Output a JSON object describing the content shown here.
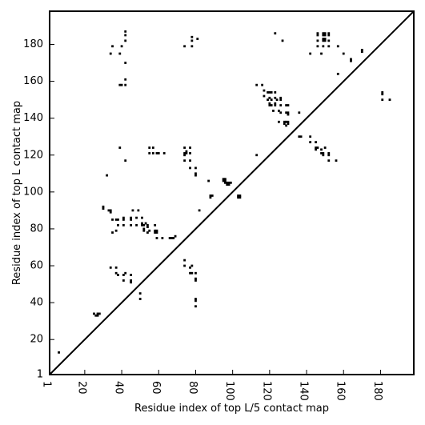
{
  "chart_data": {
    "type": "scatter",
    "xlabel": "Residue index of top L/5 contact map",
    "ylabel": "Residue index of top L contact map",
    "xlim": [
      1,
      198
    ],
    "ylim": [
      1,
      198
    ],
    "xticks": [
      1,
      20,
      40,
      60,
      80,
      100,
      120,
      140,
      160,
      180
    ],
    "yticks": [
      1,
      20,
      40,
      60,
      80,
      100,
      120,
      140,
      160,
      180
    ],
    "grid": false,
    "diagonal": true,
    "series": [
      {
        "color": "#000000",
        "marker": "square",
        "points": [
          [
            6,
            13
          ],
          [
            25,
            34
          ],
          [
            26,
            33
          ],
          [
            27,
            33
          ],
          [
            27,
            34
          ],
          [
            28,
            34
          ],
          [
            30,
            91
          ],
          [
            30,
            92
          ],
          [
            32,
            109
          ],
          [
            34,
            89
          ],
          [
            34,
            90
          ],
          [
            33,
            90
          ],
          [
            34,
            59
          ],
          [
            35,
            78
          ],
          [
            35,
            85
          ],
          [
            34,
            175
          ],
          [
            35,
            179
          ],
          [
            37,
            79
          ],
          [
            37,
            85
          ],
          [
            38,
            82
          ],
          [
            38,
            85
          ],
          [
            37,
            56
          ],
          [
            37,
            59
          ],
          [
            38,
            55
          ],
          [
            39,
            124
          ],
          [
            39,
            158
          ],
          [
            39,
            175
          ],
          [
            40,
            158
          ],
          [
            40,
            179
          ],
          [
            41,
            52
          ],
          [
            41,
            55
          ],
          [
            41,
            82
          ],
          [
            41,
            85
          ],
          [
            41,
            86
          ],
          [
            42,
            56
          ],
          [
            42,
            117
          ],
          [
            42,
            158
          ],
          [
            42,
            161
          ],
          [
            42,
            170
          ],
          [
            42,
            182
          ],
          [
            42,
            185
          ],
          [
            42,
            187
          ],
          [
            45,
            51
          ],
          [
            45,
            52
          ],
          [
            45,
            55
          ],
          [
            45,
            82
          ],
          [
            45,
            85
          ],
          [
            45,
            86
          ],
          [
            46,
            90
          ],
          [
            48,
            82
          ],
          [
            48,
            86
          ],
          [
            49,
            90
          ],
          [
            50,
            42
          ],
          [
            50,
            45
          ],
          [
            51,
            82
          ],
          [
            51,
            83
          ],
          [
            51,
            86
          ],
          [
            52,
            82
          ],
          [
            52,
            79
          ],
          [
            52,
            80
          ],
          [
            53,
            83
          ],
          [
            54,
            78
          ],
          [
            54,
            81
          ],
          [
            54,
            82
          ],
          [
            55,
            79
          ],
          [
            55,
            121
          ],
          [
            55,
            124
          ],
          [
            57,
            121
          ],
          [
            57,
            124
          ],
          [
            58,
            78
          ],
          [
            58,
            79
          ],
          [
            59,
            78
          ],
          [
            59,
            79
          ],
          [
            58,
            82
          ],
          [
            59,
            75
          ],
          [
            59,
            121
          ],
          [
            60,
            121
          ],
          [
            62,
            75
          ],
          [
            63,
            121
          ],
          [
            66,
            75
          ],
          [
            67,
            75
          ],
          [
            68,
            75
          ],
          [
            69,
            76
          ],
          [
            74,
            179
          ],
          [
            74,
            117
          ],
          [
            74,
            120
          ],
          [
            74,
            121
          ],
          [
            75,
            121
          ],
          [
            75,
            122
          ],
          [
            74,
            124
          ],
          [
            74,
            60
          ],
          [
            74,
            63
          ],
          [
            77,
            56
          ],
          [
            77,
            59
          ],
          [
            77,
            113
          ],
          [
            77,
            117
          ],
          [
            77,
            121
          ],
          [
            77,
            124
          ],
          [
            78,
            60
          ],
          [
            78,
            56
          ],
          [
            78,
            179
          ],
          [
            78,
            182
          ],
          [
            78,
            184
          ],
          [
            80,
            56
          ],
          [
            80,
            52
          ],
          [
            80,
            53
          ],
          [
            80,
            41
          ],
          [
            80,
            42
          ],
          [
            80,
            38
          ],
          [
            80,
            109
          ],
          [
            80,
            110
          ],
          [
            80,
            113
          ],
          [
            81,
            183
          ],
          [
            82,
            90
          ],
          [
            87,
            106
          ],
          [
            88,
            97
          ],
          [
            88,
            98
          ],
          [
            89,
            98
          ],
          [
            95,
            106
          ],
          [
            95,
            107
          ],
          [
            96,
            106
          ],
          [
            96,
            107
          ],
          [
            96,
            105
          ],
          [
            97,
            104
          ],
          [
            97,
            105
          ],
          [
            98,
            105
          ],
          [
            98,
            104
          ],
          [
            99,
            105
          ],
          [
            103,
            97
          ],
          [
            103,
            98
          ],
          [
            104,
            97
          ],
          [
            104,
            98
          ],
          [
            113,
            120
          ],
          [
            113,
            158
          ],
          [
            116,
            158
          ],
          [
            117,
            152
          ],
          [
            117,
            155
          ],
          [
            119,
            154
          ],
          [
            119,
            150
          ],
          [
            120,
            151
          ],
          [
            120,
            147
          ],
          [
            120,
            148
          ],
          [
            120,
            154
          ],
          [
            121,
            154
          ],
          [
            121,
            150
          ],
          [
            121,
            147
          ],
          [
            122,
            144
          ],
          [
            123,
            147
          ],
          [
            123,
            148
          ],
          [
            123,
            151
          ],
          [
            123,
            154
          ],
          [
            123,
            186
          ],
          [
            124,
            150
          ],
          [
            125,
            138
          ],
          [
            125,
            144
          ],
          [
            126,
            147
          ],
          [
            126,
            150
          ],
          [
            126,
            151
          ],
          [
            126,
            143
          ],
          [
            127,
            182
          ],
          [
            128,
            137
          ],
          [
            128,
            138
          ],
          [
            129,
            138
          ],
          [
            129,
            136
          ],
          [
            129,
            143
          ],
          [
            129,
            147
          ],
          [
            130,
            142
          ],
          [
            130,
            143
          ],
          [
            130,
            147
          ],
          [
            130,
            137
          ],
          [
            130,
            138
          ],
          [
            136,
            130
          ],
          [
            136,
            143
          ],
          [
            137,
            130
          ],
          [
            142,
            175
          ],
          [
            142,
            130
          ],
          [
            142,
            127
          ],
          [
            145,
            123
          ],
          [
            145,
            124
          ],
          [
            145,
            127
          ],
          [
            146,
            179
          ],
          [
            146,
            182
          ],
          [
            146,
            185
          ],
          [
            146,
            186
          ],
          [
            146,
            124
          ],
          [
            148,
            175
          ],
          [
            148,
            121
          ],
          [
            148,
            123
          ],
          [
            149,
            179
          ],
          [
            149,
            182
          ],
          [
            149,
            183
          ],
          [
            149,
            185
          ],
          [
            149,
            186
          ],
          [
            149,
            120
          ],
          [
            149,
            121
          ],
          [
            150,
            182
          ],
          [
            150,
            183
          ],
          [
            150,
            185
          ],
          [
            150,
            186
          ],
          [
            150,
            124
          ],
          [
            152,
            120
          ],
          [
            152,
            121
          ],
          [
            152,
            117
          ],
          [
            152,
            179
          ],
          [
            152,
            182
          ],
          [
            152,
            185
          ],
          [
            152,
            186
          ],
          [
            156,
            117
          ],
          [
            157,
            179
          ],
          [
            157,
            164
          ],
          [
            160,
            175
          ],
          [
            164,
            171
          ],
          [
            164,
            172
          ],
          [
            170,
            176
          ],
          [
            170,
            177
          ],
          [
            181,
            150
          ],
          [
            181,
            153
          ],
          [
            181,
            154
          ],
          [
            185,
            150
          ]
        ]
      }
    ]
  }
}
